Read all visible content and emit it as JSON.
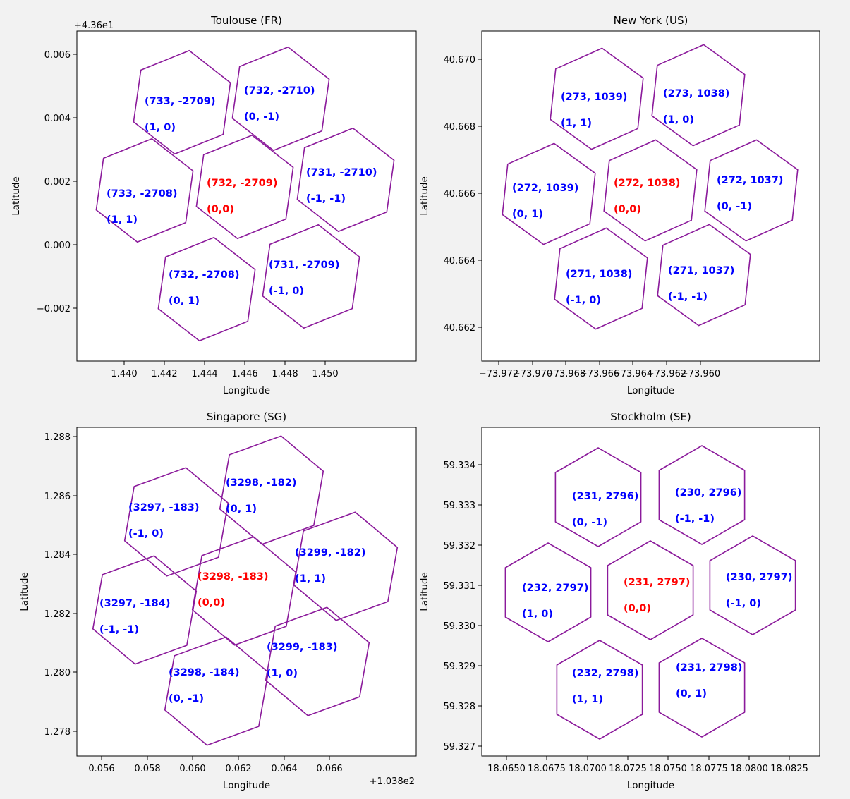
{
  "colors": {
    "hex_edge": "#8b1a9b",
    "center_label": "#ff0000",
    "neighbor_label": "#0000ff"
  },
  "chart_data": [
    {
      "type": "scatter",
      "title": "Toulouse (FR)",
      "xlabel": "Longitude",
      "ylabel": "Latitude",
      "offset_y": "+4.36e1",
      "offset_x": "",
      "xticks": [
        "1.440",
        "1.442",
        "1.444",
        "1.446",
        "1.448",
        "1.450"
      ],
      "yticks": [
        "0.006",
        "0.004",
        "0.002",
        "0.000",
        "−0.002"
      ],
      "cells": [
        {
          "id": "(732, -2709)",
          "rel": "(0,0)",
          "center": true
        },
        {
          "id": "(733, -2709)",
          "rel": "(1, 0)",
          "center": false
        },
        {
          "id": "(732, -2710)",
          "rel": "(0, -1)",
          "center": false
        },
        {
          "id": "(733, -2708)",
          "rel": "(1, 1)",
          "center": false
        },
        {
          "id": "(731, -2710)",
          "rel": "(-1, -1)",
          "center": false
        },
        {
          "id": "(732, -2708)",
          "rel": "(0, 1)",
          "center": false
        },
        {
          "id": "(731, -2709)",
          "rel": "(-1, 0)",
          "center": false
        }
      ]
    },
    {
      "type": "scatter",
      "title": "New York (US)",
      "xlabel": "Longitude",
      "ylabel": "Latitude",
      "offset_y": "",
      "offset_x": "",
      "xticks": [
        "−73.972",
        "−73.970",
        "−73.968",
        "−73.966",
        "−73.964",
        "−73.962",
        "−73.960"
      ],
      "yticks": [
        "40.670",
        "40.668",
        "40.666",
        "40.664",
        "40.662"
      ],
      "cells": [
        {
          "id": "(272, 1038)",
          "rel": "(0,0)",
          "center": true
        },
        {
          "id": "(273, 1039)",
          "rel": "(1, 1)",
          "center": false
        },
        {
          "id": "(273, 1038)",
          "rel": "(1, 0)",
          "center": false
        },
        {
          "id": "(272, 1039)",
          "rel": "(0, 1)",
          "center": false
        },
        {
          "id": "(272, 1037)",
          "rel": "(0, -1)",
          "center": false
        },
        {
          "id": "(271, 1038)",
          "rel": "(-1, 0)",
          "center": false
        },
        {
          "id": "(271, 1037)",
          "rel": "(-1, -1)",
          "center": false
        }
      ]
    },
    {
      "type": "scatter",
      "title": "Singapore (SG)",
      "xlabel": "Longitude",
      "ylabel": "Latitude",
      "offset_y": "",
      "offset_x": "+1.038e2",
      "xticks": [
        "0.056",
        "0.058",
        "0.060",
        "0.062",
        "0.064",
        "0.066"
      ],
      "yticks": [
        "1.288",
        "1.286",
        "1.284",
        "1.282",
        "1.280",
        "1.278"
      ],
      "cells": [
        {
          "id": "(3298, -183)",
          "rel": "(0,0)",
          "center": true
        },
        {
          "id": "(3297, -183)",
          "rel": "(-1, 0)",
          "center": false
        },
        {
          "id": "(3298, -182)",
          "rel": "(0, 1)",
          "center": false
        },
        {
          "id": "(3297, -184)",
          "rel": "(-1, -1)",
          "center": false
        },
        {
          "id": "(3299, -182)",
          "rel": "(1, 1)",
          "center": false
        },
        {
          "id": "(3298, -184)",
          "rel": "(0, -1)",
          "center": false
        },
        {
          "id": "(3299, -183)",
          "rel": "(1, 0)",
          "center": false
        }
      ]
    },
    {
      "type": "scatter",
      "title": "Stockholm (SE)",
      "xlabel": "Longitude",
      "ylabel": "Latitude",
      "offset_y": "",
      "offset_x": "",
      "xticks": [
        "18.0650",
        "18.0675",
        "18.0700",
        "18.0725",
        "18.0750",
        "18.0775",
        "18.0800",
        "18.0825"
      ],
      "yticks": [
        "59.334",
        "59.333",
        "59.332",
        "59.331",
        "59.330",
        "59.329",
        "59.328",
        "59.327"
      ],
      "cells": [
        {
          "id": "(231, 2797)",
          "rel": "(0,0)",
          "center": true
        },
        {
          "id": "(231, 2796)",
          "rel": "(0, -1)",
          "center": false
        },
        {
          "id": "(230, 2796)",
          "rel": "(-1, -1)",
          "center": false
        },
        {
          "id": "(232, 2797)",
          "rel": "(1, 0)",
          "center": false
        },
        {
          "id": "(230, 2797)",
          "rel": "(-1, 0)",
          "center": false
        },
        {
          "id": "(232, 2798)",
          "rel": "(1, 1)",
          "center": false
        },
        {
          "id": "(231, 2798)",
          "rel": "(0, 1)",
          "center": false
        }
      ]
    }
  ]
}
